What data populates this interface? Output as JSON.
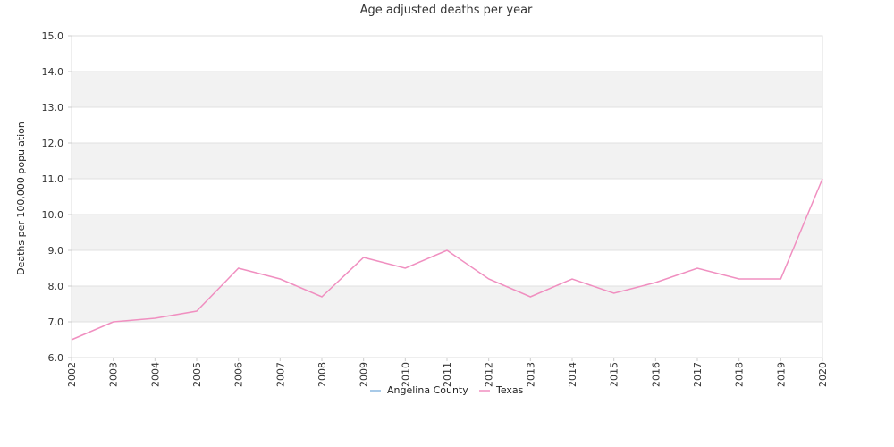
{
  "chart_data": {
    "type": "line",
    "title": "Age adjusted deaths per year",
    "xlabel": "",
    "ylabel": "Deaths per 100,000 population",
    "x": [
      "2002",
      "2003",
      "2004",
      "2005",
      "2006",
      "2007",
      "2008",
      "2009",
      "2010",
      "2011",
      "2012",
      "2013",
      "2014",
      "2015",
      "2016",
      "2017",
      "2018",
      "2019",
      "2020"
    ],
    "ylim": [
      6.0,
      15.0
    ],
    "yticks": [
      "6.0",
      "7.0",
      "8.0",
      "9.0",
      "10.0",
      "11.0",
      "12.0",
      "13.0",
      "14.0",
      "15.0"
    ],
    "grid": true,
    "legend_position": "bottom-center",
    "series": [
      {
        "name": "Angelina County",
        "color": "#8ab8e0",
        "values": [
          null,
          null,
          null,
          null,
          null,
          null,
          null,
          null,
          null,
          null,
          null,
          null,
          null,
          null,
          null,
          null,
          null,
          null,
          null
        ]
      },
      {
        "name": "Texas",
        "color": "#f08fc0",
        "values": [
          6.5,
          7.0,
          7.1,
          7.3,
          8.5,
          8.2,
          7.7,
          8.8,
          8.5,
          9.0,
          8.2,
          7.7,
          8.2,
          7.8,
          8.1,
          8.5,
          8.2,
          8.2,
          11.0
        ]
      }
    ]
  }
}
